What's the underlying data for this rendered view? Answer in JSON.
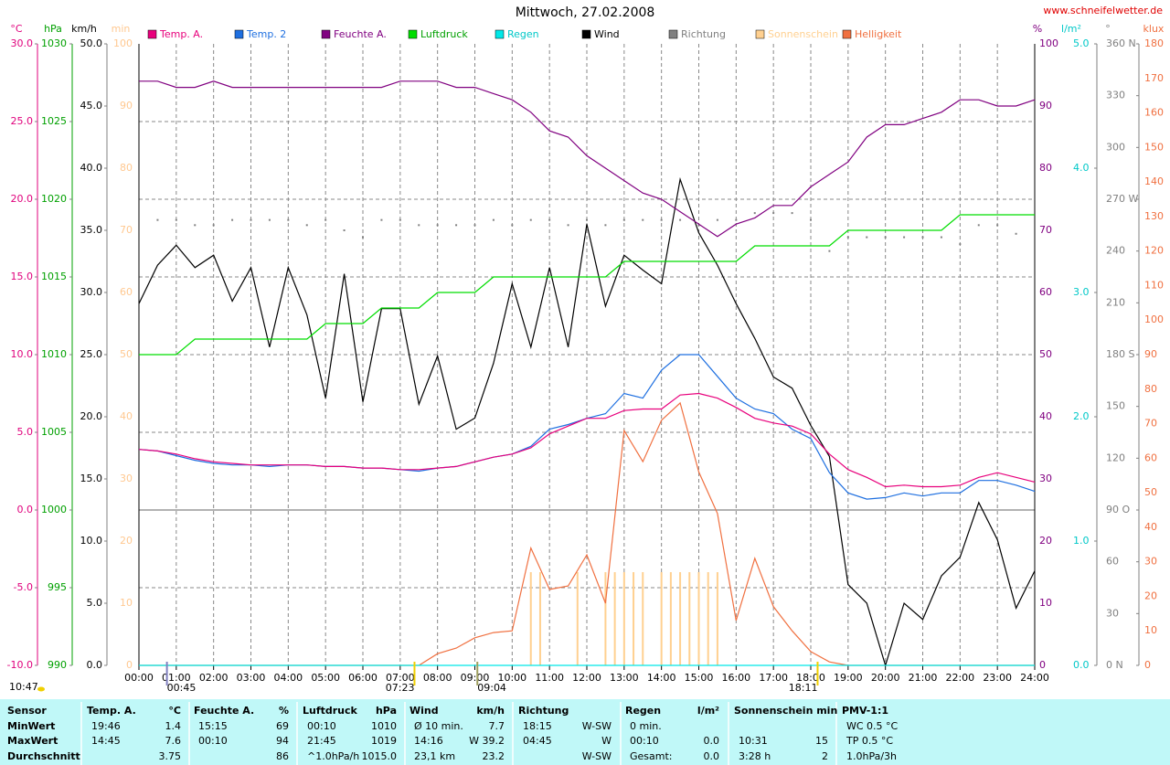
{
  "chart_data": {
    "type": "line",
    "title": "Mittwoch, 27.02.2008",
    "watermark": "www.schneifelwetter.de",
    "day_length": "10:47",
    "grid": true,
    "grid_axis": "temp",
    "xlim": [
      0,
      24
    ],
    "xticks": [
      {
        "value": 0,
        "label": "00:00"
      },
      {
        "value": 1,
        "label": "01:00"
      },
      {
        "value": 2,
        "label": "02:00"
      },
      {
        "value": 3,
        "label": "03:00"
      },
      {
        "value": 4,
        "label": "04:00"
      },
      {
        "value": 5,
        "label": "05:00"
      },
      {
        "value": 6,
        "label": "06:00"
      },
      {
        "value": 7,
        "label": "07:00"
      },
      {
        "value": 8,
        "label": "08:00"
      },
      {
        "value": 9,
        "label": "09:00"
      },
      {
        "value": 10,
        "label": "10:00"
      },
      {
        "value": 11,
        "label": "11:00"
      },
      {
        "value": 12,
        "label": "12:00"
      },
      {
        "value": 13,
        "label": "13:00"
      },
      {
        "value": 14,
        "label": "14:00"
      },
      {
        "value": 15,
        "label": "15:00"
      },
      {
        "value": 16,
        "label": "16:00"
      },
      {
        "value": 17,
        "label": "17:00"
      },
      {
        "value": 18,
        "label": "18:00"
      },
      {
        "value": 19,
        "label": "19:00"
      },
      {
        "value": 20,
        "label": "20:00"
      },
      {
        "value": 21,
        "label": "21:00"
      },
      {
        "value": 22,
        "label": "22:00"
      },
      {
        "value": 23,
        "label": "23:00"
      },
      {
        "value": 24,
        "label": "24:00"
      }
    ],
    "x": [
      0,
      0.5,
      1,
      1.5,
      2,
      2.5,
      3,
      3.5,
      4,
      4.5,
      5,
      5.5,
      6,
      6.5,
      7,
      7.5,
      8,
      8.5,
      9,
      9.5,
      10,
      10.5,
      11,
      11.5,
      12,
      12.5,
      13,
      13.5,
      14,
      14.5,
      15,
      15.5,
      16,
      16.5,
      17,
      17.5,
      18,
      18.5,
      19,
      19.5,
      20,
      20.5,
      21,
      21.5,
      22,
      22.5,
      23,
      23.5,
      24
    ],
    "axes": [
      {
        "id": "temp",
        "label": "°C",
        "color": "#e0007c",
        "lim": [
          -10,
          30
        ],
        "ticks": [
          {
            "value": -10,
            "label": "-10.0"
          },
          {
            "value": -5,
            "label": "-5.0"
          },
          {
            "value": 0,
            "label": "0.0"
          },
          {
            "value": 5,
            "label": "5.0"
          },
          {
            "value": 10,
            "label": "10.0"
          },
          {
            "value": 15,
            "label": "15.0"
          },
          {
            "value": 20,
            "label": "20.0"
          },
          {
            "value": 25,
            "label": "25.0"
          },
          {
            "value": 30,
            "label": "30.0"
          }
        ]
      },
      {
        "id": "hpa",
        "label": "hPa",
        "color": "#00a000",
        "lim": [
          990,
          1030
        ],
        "ticks": [
          990,
          995,
          1000,
          1005,
          1010,
          1015,
          1020,
          1025,
          1030
        ]
      },
      {
        "id": "wind",
        "label": "km/h",
        "color": "#000000",
        "lim": [
          0,
          50
        ],
        "ticks": [
          {
            "value": 0,
            "label": "0.0"
          },
          {
            "value": 5,
            "label": "5.0"
          },
          {
            "value": 10,
            "label": "10.0"
          },
          {
            "value": 15,
            "label": "15.0"
          },
          {
            "value": 20,
            "label": "20.0"
          },
          {
            "value": 25,
            "label": "25.0"
          },
          {
            "value": 30,
            "label": "30.0"
          },
          {
            "value": 35,
            "label": "35.0"
          },
          {
            "value": 40,
            "label": "40.0"
          },
          {
            "value": 45,
            "label": "45.0"
          },
          {
            "value": 50,
            "label": "50.0"
          }
        ]
      },
      {
        "id": "min",
        "label": "min",
        "color": "#ffc890",
        "lim": [
          0,
          100
        ],
        "ticks": [
          0,
          10,
          20,
          30,
          40,
          50,
          60,
          70,
          80,
          90,
          100
        ]
      },
      {
        "id": "hum",
        "label": "%",
        "color": "#800080",
        "lim": [
          0,
          100
        ],
        "ticks": [
          0,
          10,
          20,
          30,
          40,
          50,
          60,
          70,
          80,
          90,
          100
        ]
      },
      {
        "id": "rain",
        "label": "l/m²",
        "color": "#00c8c8",
        "lim": [
          0,
          5
        ],
        "ticks": [
          {
            "value": 0,
            "label": "0.0"
          },
          {
            "value": 1,
            "label": "1.0"
          },
          {
            "value": 2,
            "label": "2.0"
          },
          {
            "value": 3,
            "label": "3.0"
          },
          {
            "value": 4,
            "label": "4.0"
          },
          {
            "value": 5,
            "label": "5.0"
          }
        ]
      },
      {
        "id": "dir",
        "label": "°",
        "color": "#808080",
        "lim": [
          0,
          360
        ],
        "ticks": [
          {
            "value": 0,
            "label": "0 N"
          },
          30,
          60,
          {
            "value": 90,
            "label": "90 O"
          },
          120,
          150,
          {
            "value": 180,
            "label": "180 S"
          },
          210,
          240,
          {
            "value": 270,
            "label": "270 W"
          },
          300,
          330,
          {
            "value": 360,
            "label": "360 N"
          }
        ]
      },
      {
        "id": "klux",
        "label": "klux",
        "color": "#f07040",
        "lim": [
          0,
          180
        ],
        "ticks": [
          0,
          10,
          20,
          30,
          40,
          50,
          60,
          70,
          80,
          90,
          100,
          110,
          120,
          130,
          140,
          150,
          160,
          170,
          180
        ]
      }
    ],
    "series": [
      {
        "name": "Temp. A.",
        "color": "#e8007c",
        "axis": "temp",
        "style": "line",
        "values": [
          3.9,
          3.8,
          3.6,
          3.3,
          3.1,
          3.0,
          2.9,
          2.9,
          2.9,
          2.9,
          2.8,
          2.8,
          2.7,
          2.7,
          2.6,
          2.6,
          2.7,
          2.8,
          3.1,
          3.4,
          3.6,
          4.0,
          4.9,
          5.4,
          5.9,
          5.9,
          6.4,
          6.5,
          6.5,
          7.4,
          7.5,
          7.2,
          6.6,
          5.9,
          5.6,
          5.4,
          4.9,
          3.6,
          2.6,
          2.1,
          1.5,
          1.6,
          1.5,
          1.5,
          1.6,
          2.1,
          2.4,
          2.1,
          1.8
        ]
      },
      {
        "name": "Temp. 2",
        "color": "#1e6fe0",
        "axis": "temp",
        "style": "line",
        "values": [
          3.9,
          3.8,
          3.5,
          3.2,
          3.0,
          2.9,
          2.9,
          2.8,
          2.9,
          2.9,
          2.8,
          2.8,
          2.7,
          2.7,
          2.6,
          2.5,
          2.7,
          2.8,
          3.1,
          3.4,
          3.6,
          4.1,
          5.2,
          5.5,
          5.9,
          6.2,
          7.5,
          7.2,
          9.0,
          10.0,
          10.0,
          8.6,
          7.2,
          6.5,
          6.2,
          5.2,
          4.6,
          2.4,
          1.1,
          0.7,
          0.8,
          1.1,
          0.9,
          1.1,
          1.1,
          1.9,
          1.9,
          1.6,
          1.2
        ]
      },
      {
        "name": "Feuchte A.",
        "color": "#800080",
        "axis": "hum",
        "style": "line",
        "values": [
          94,
          94,
          93,
          93,
          94,
          93,
          93,
          93,
          93,
          93,
          93,
          93,
          93,
          93,
          94,
          94,
          94,
          93,
          93,
          92,
          91,
          89,
          86,
          85,
          82,
          80,
          78,
          76,
          75,
          73,
          71,
          69,
          71,
          72,
          74,
          74,
          77,
          79,
          81,
          85,
          87,
          87,
          88,
          89,
          91,
          91,
          90,
          90,
          91
        ]
      },
      {
        "name": "Luftdruck",
        "color": "#00dd00",
        "axis": "hpa",
        "style": "line",
        "values": [
          1010,
          1010,
          1010,
          1011,
          1011,
          1011,
          1011,
          1011,
          1011,
          1011,
          1012,
          1012,
          1012,
          1013,
          1013,
          1013,
          1014,
          1014,
          1014,
          1015,
          1015,
          1015,
          1015,
          1015,
          1015,
          1015,
          1016,
          1016,
          1016,
          1016,
          1016,
          1016,
          1016,
          1017,
          1017,
          1017,
          1017,
          1017,
          1018,
          1018,
          1018,
          1018,
          1018,
          1018,
          1019,
          1019,
          1019,
          1019,
          1019
        ]
      },
      {
        "name": "Regen",
        "color": "#00e8e8",
        "axis": "rain",
        "style": "line",
        "x": [
          0,
          24
        ],
        "values": [
          0,
          0
        ]
      },
      {
        "name": "Wind",
        "color": "#000000",
        "axis": "wind",
        "style": "line",
        "values": [
          29.1,
          32.2,
          33.8,
          32.0,
          33.0,
          29.3,
          32.0,
          25.6,
          32.0,
          28.2,
          21.5,
          31.5,
          21.2,
          28.7,
          28.7,
          21.0,
          24.9,
          19.0,
          19.9,
          24.3,
          30.7,
          25.6,
          32.0,
          25.6,
          35.5,
          28.9,
          33.0,
          31.8,
          30.7,
          39.1,
          34.8,
          32.2,
          29.1,
          26.3,
          23.2,
          22.3,
          19.3,
          16.8,
          6.5,
          5.0,
          0.0,
          5.0,
          3.7,
          7.2,
          8.7,
          13.1,
          10.1,
          4.6,
          7.6
        ]
      },
      {
        "name": "Richtung",
        "color": "#808080",
        "axis": "dir",
        "style": "dots",
        "values": [
          255,
          258,
          258,
          255,
          255,
          258,
          258,
          258,
          258,
          255,
          258,
          252,
          248,
          258,
          258,
          255,
          255,
          255,
          255,
          258,
          255,
          258,
          258,
          255,
          258,
          255,
          258,
          258,
          258,
          258,
          255,
          258,
          258,
          262,
          262,
          262,
          258,
          240,
          248,
          248,
          248,
          248,
          248,
          248,
          244,
          255,
          255,
          250,
          250
        ]
      },
      {
        "name": "Sonnenschein",
        "color": "#ffd090",
        "axis": "min",
        "style": "bars",
        "x": [
          10.5,
          10.75,
          11.75,
          12.5,
          12.75,
          13.0,
          13.25,
          13.5,
          14.0,
          14.25,
          14.5,
          14.75,
          15.0,
          15.25,
          15.5
        ],
        "values": [
          15,
          15,
          15,
          15,
          15,
          15,
          15,
          15,
          15,
          15,
          15,
          15,
          15,
          15,
          15
        ]
      },
      {
        "name": "Helligkeit",
        "color": "#f07040",
        "axis": "klux",
        "style": "line",
        "values": [
          0,
          0,
          0,
          0,
          0,
          0,
          0,
          0,
          0,
          0,
          0,
          0,
          0,
          0,
          0,
          0,
          3.4,
          5,
          8,
          9.5,
          10,
          34,
          22,
          23,
          32,
          18,
          68,
          59,
          71,
          76,
          56,
          44,
          13,
          31,
          17,
          10,
          4,
          1,
          0,
          0,
          0,
          0,
          0,
          0,
          0,
          0,
          0,
          0,
          0
        ]
      }
    ],
    "markers": [
      {
        "value": 0.75,
        "label": "00:45",
        "color": "#8080c0"
      },
      {
        "value": 7.383,
        "label": "07:23",
        "color": "#f0d000"
      },
      {
        "value": 9.067,
        "label": "09:04",
        "color": "#a0a060"
      },
      {
        "value": 18.183,
        "label": "18:11",
        "color": "#f0d000"
      }
    ]
  },
  "stats": {
    "sections": [
      {
        "header": [
          "Sensor"
        ],
        "rows": [
          "MinWert",
          "MaxWert",
          "Durchschnitt"
        ]
      },
      {
        "header": [
          "Temp. A.",
          "°C"
        ],
        "rows": [
          {
            "left": "19:46",
            "right": "1.4"
          },
          {
            "left": "14:45",
            "right": "7.6"
          },
          {
            "right": "3.75"
          }
        ]
      },
      {
        "header": [
          "Feuchte A.",
          "%"
        ],
        "rows": [
          {
            "left": "15:15",
            "right": "69"
          },
          {
            "left": "00:10",
            "right": "94"
          },
          {
            "right": "86"
          }
        ]
      },
      {
        "header": [
          "Luftdruck",
          "hPa"
        ],
        "rows": [
          {
            "left": "00:10",
            "right": "1010"
          },
          {
            "left": "21:45",
            "right": "1019"
          },
          {
            "left": "^1.0hPa/h",
            "right": "1015.0"
          }
        ]
      },
      {
        "header": [
          "Wind",
          "km/h"
        ],
        "rows": [
          {
            "left": "Ø 10 min.",
            "right": "7.7"
          },
          {
            "left": "14:16",
            "right": "W 39.2"
          },
          {
            "left": "23,1 km",
            "right": "23.2"
          }
        ]
      },
      {
        "header": [
          "Richtung"
        ],
        "rows": [
          {
            "left": "18:15",
            "right": "W-SW"
          },
          {
            "left": "04:45",
            "right": "W"
          },
          {
            "right": "W-SW"
          }
        ]
      },
      {
        "header": [
          "Regen",
          "l/m²"
        ],
        "rows": [
          {
            "left": "0 min."
          },
          {
            "left": "00:10",
            "right": "0.0"
          },
          {
            "left": "Gesamt:",
            "right": "0.0"
          }
        ]
      },
      {
        "header": [
          "Sonnenschein min"
        ],
        "rows": [
          {},
          {
            "left": "10:31",
            "right": "15"
          },
          {
            "left": "3:28 h",
            "right": "2"
          }
        ]
      },
      {
        "header": [
          "PMV-1:1"
        ],
        "rows": [
          {
            "left": "WC 0.5 °C"
          },
          {
            "left": "TP 0.5 °C"
          },
          {
            "left": "1.0hPa/3h"
          }
        ]
      }
    ]
  }
}
